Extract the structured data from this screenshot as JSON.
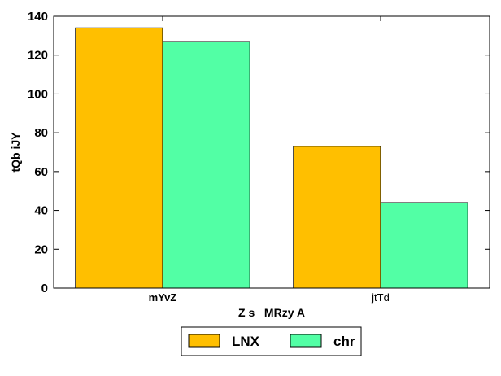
{
  "chart_data": {
    "type": "bar",
    "categories": [
      "mYvZ",
      "jtTd"
    ],
    "series": [
      {
        "name": "LNX",
        "values": [
          134,
          73
        ],
        "color": "#ffbf00"
      },
      {
        "name": "chr",
        "values": [
          127,
          44
        ],
        "color": "#52ffa5"
      }
    ],
    "title": "",
    "xlabel": "Z s   MRzy A",
    "ylabel": "tQb iJY",
    "ylim": [
      0,
      140
    ],
    "yticks": [
      0,
      20,
      40,
      60,
      80,
      100,
      120,
      140
    ],
    "grid": false,
    "legend_position": "bottom-center"
  }
}
